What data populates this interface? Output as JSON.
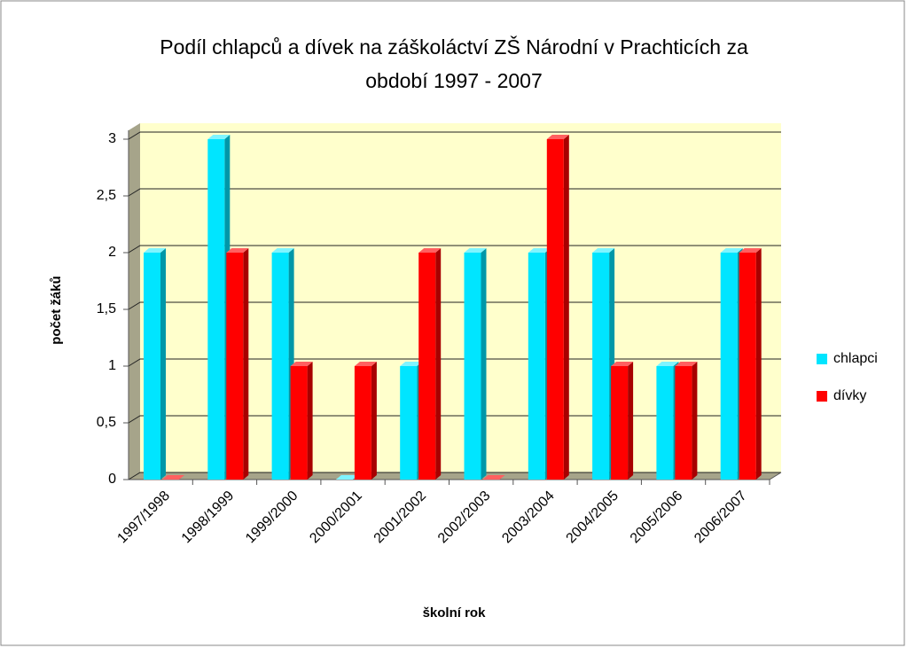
{
  "chart_data": {
    "type": "bar3d",
    "title": [
      "Podíl chlapců a dívek na záškoláctví ZŠ Národní v Prachticích za",
      "období 1997 - 2007"
    ],
    "x_label": "školní rok",
    "y_label": "počet žáků",
    "categories": [
      "1997/1998",
      "1998/1999",
      "1999/2000",
      "2000/2001",
      "2001/2002",
      "2002/2003",
      "2003/2004",
      "2004/2005",
      "2005/2006",
      "2006/2007"
    ],
    "series": [
      {
        "name": "chlapci",
        "color": "#00e5ff",
        "side_color": "#0097a8",
        "top_color": "#7ff4ff",
        "values": [
          2,
          3,
          2,
          0,
          1,
          2,
          2,
          2,
          1,
          2
        ]
      },
      {
        "name": "dívky",
        "color": "#ff0000",
        "side_color": "#a80000",
        "top_color": "#ff6060",
        "values": [
          0,
          2,
          1,
          1,
          2,
          0,
          3,
          1,
          1,
          2
        ]
      }
    ],
    "ylim": [
      0,
      3
    ],
    "yticks": [
      0,
      {
        "value": 0.5,
        "label": "0,5"
      },
      1,
      {
        "value": 1.5,
        "label": "1,5"
      },
      2,
      {
        "value": 2.5,
        "label": "2,5"
      },
      3
    ],
    "grid": true,
    "legend": "right"
  }
}
